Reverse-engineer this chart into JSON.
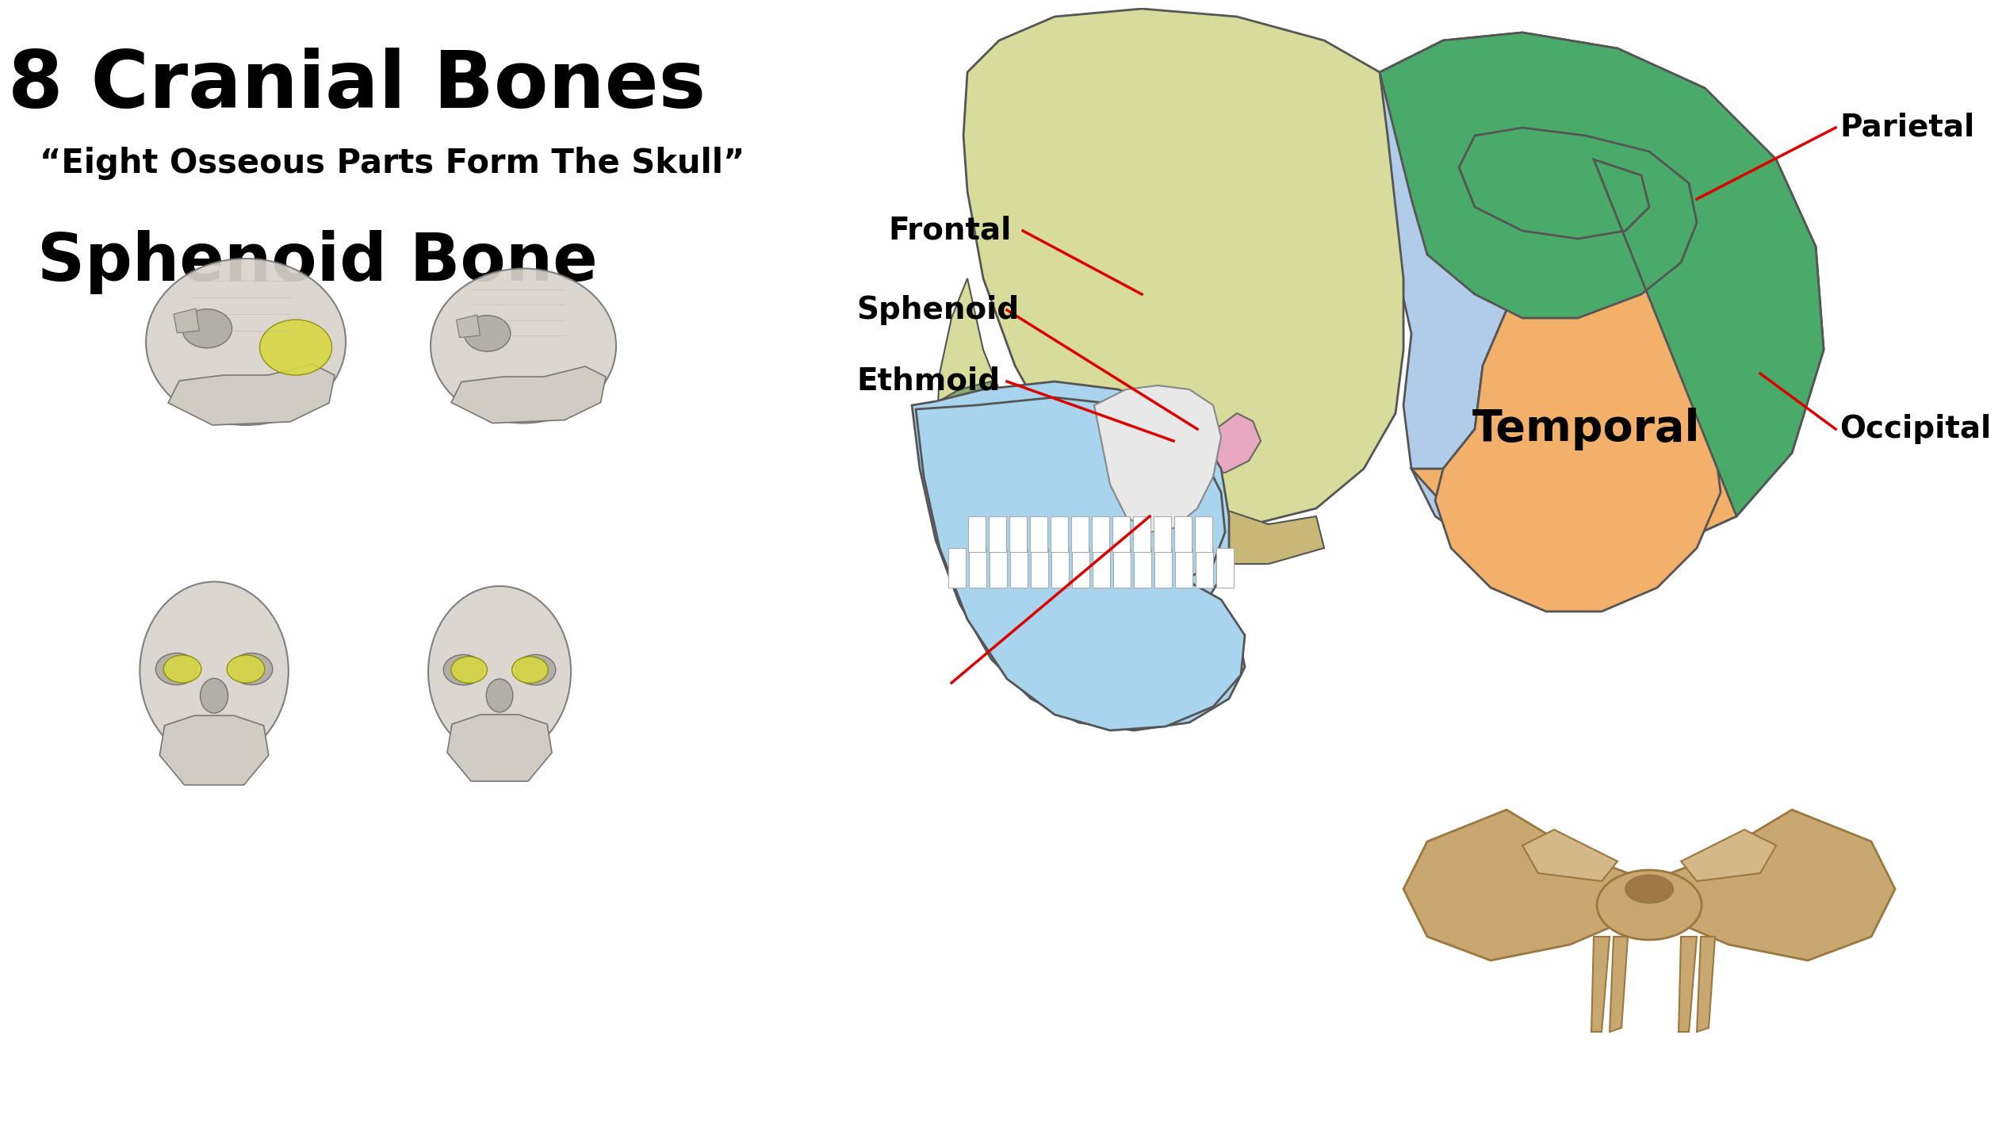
{
  "title": "8 Cranial Bones",
  "subtitle": "“Eight Osseous Parts Form The Skull”",
  "subheading": "Sphenoid Bone",
  "background_color": "#ffffff",
  "title_fontsize": 72,
  "subtitle_fontsize": 30,
  "subheading_fontsize": 60,
  "label_fontsize": 28,
  "temporal_fontsize": 40,
  "parietal_color": "#b0cce8",
  "frontal_color": "#d8dc9a",
  "temporal_color": "#f2b06a",
  "occipital_color": "#4aaa6a",
  "sphenoid_color": "#e8a8c0",
  "ethmoid_color": "#7abcb0",
  "mandible_color": "#a8d4ee",
  "nasal_color": "#c8d090",
  "zygomatic_color": "#d0b880",
  "annotation_color": "#dd0000",
  "bone_tan": "#c8a870",
  "bone_tan_dark": "#9a7840"
}
